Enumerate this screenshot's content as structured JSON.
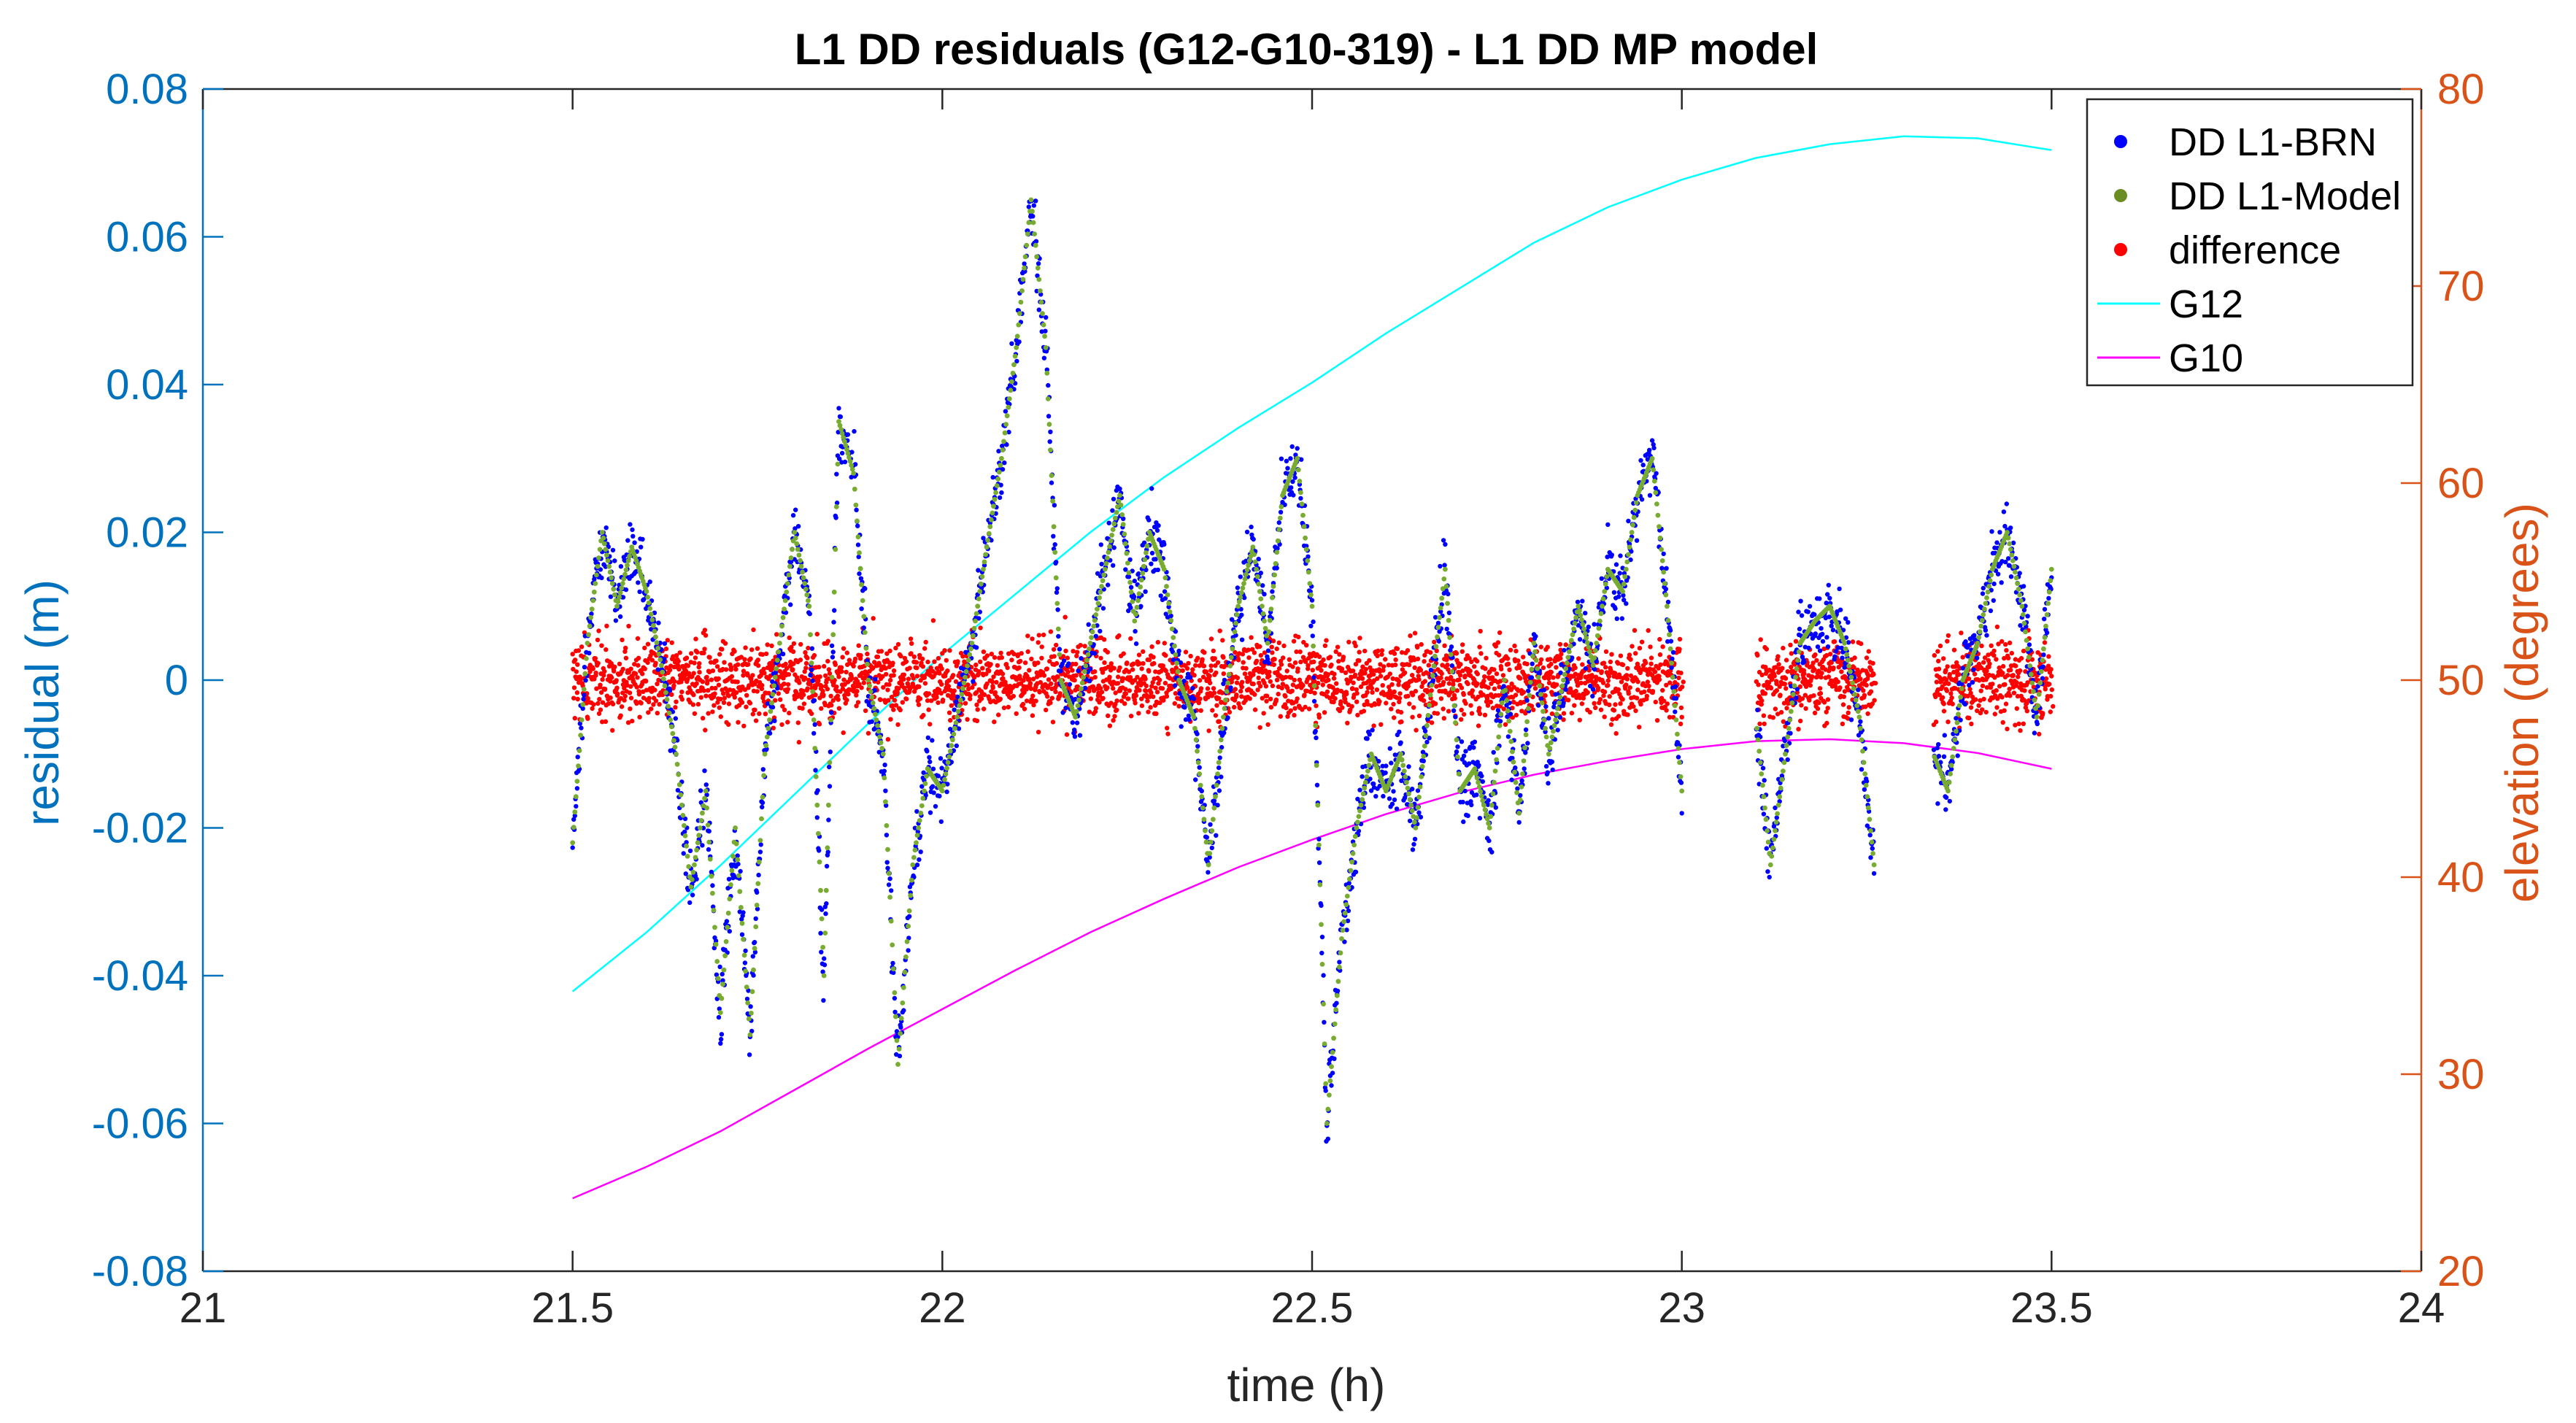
{
  "chart_data": {
    "type": "scatter",
    "title": "L1 DD residuals (G12-G10-319) - L1 DD MP model",
    "xlabel": "time (h)",
    "ylabel_left": "residual (m)",
    "ylabel_right": "elevation (degrees)",
    "xlim": [
      21,
      24
    ],
    "ylim_left": [
      -0.08,
      0.08
    ],
    "ylim_right": [
      20,
      80
    ],
    "x_ticks": [
      "21",
      "21.5",
      "22",
      "22.5",
      "23",
      "23.5",
      "24"
    ],
    "x_tick_values": [
      21,
      21.5,
      22,
      22.5,
      23,
      23.5,
      24
    ],
    "y_left_ticks": [
      "0.08",
      "0.06",
      "0.04",
      "0.02",
      "0",
      "-0.02",
      "-0.04",
      "-0.06",
      "-0.08"
    ],
    "y_left_tick_values": [
      0.08,
      0.06,
      0.04,
      0.02,
      0,
      -0.02,
      -0.04,
      -0.06,
      -0.08
    ],
    "y_right_ticks": [
      "80",
      "70",
      "60",
      "50",
      "40",
      "30",
      "20"
    ],
    "y_right_tick_values": [
      80,
      70,
      60,
      50,
      40,
      30,
      20
    ],
    "grid": false,
    "legend_position": "top-right",
    "colors": {
      "left_axis": "#0072BD",
      "right_axis": "#D95319",
      "blue_series": "#0000FF",
      "model_series": "#77AC30",
      "difference_series": "#FF0000",
      "g12": "#00FFFF",
      "g10": "#FF00FF"
    },
    "legend": [
      {
        "label": "DD L1-BRN",
        "kind": "dot",
        "color": "#0000FF"
      },
      {
        "label": "DD L1-Model",
        "kind": "dot",
        "color": "#6B8E23"
      },
      {
        "label": "difference",
        "kind": "dot",
        "color": "#FF0000"
      },
      {
        "label": "G12",
        "kind": "line",
        "color": "#00FFFF"
      },
      {
        "label": "G10",
        "kind": "line",
        "color": "#FF00FF"
      }
    ],
    "series": [
      {
        "name": "DD L1-Model",
        "axis": "left",
        "x": [
          21.5,
          21.52,
          21.54,
          21.56,
          21.58,
          21.6,
          21.62,
          21.64,
          21.66,
          21.68,
          21.7,
          21.72,
          21.74,
          21.76,
          21.78,
          21.8,
          21.82,
          21.84,
          21.86,
          21.88,
          21.9,
          21.92,
          21.94,
          21.96,
          21.98,
          22.0,
          22.02,
          22.04,
          22.06,
          22.08,
          22.1,
          22.12,
          22.14,
          22.16,
          22.18,
          22.2,
          22.22,
          22.24,
          22.26,
          22.28,
          22.3,
          22.32,
          22.34,
          22.36,
          22.38,
          22.4,
          22.42,
          22.44,
          22.46,
          22.48,
          22.5,
          22.52,
          22.54,
          22.56,
          22.58,
          22.6,
          22.62,
          22.64,
          22.66,
          22.68,
          22.7,
          22.72,
          22.74,
          22.76,
          22.78,
          22.8,
          22.82,
          22.84,
          22.86,
          22.88,
          22.9,
          22.92,
          22.94,
          22.96,
          22.98,
          23.0,
          23.02,
          23.04,
          23.06,
          23.08,
          23.1,
          23.12,
          23.14,
          23.16,
          23.18,
          23.2,
          23.22,
          23.24,
          23.26,
          23.28,
          23.3,
          23.32,
          23.34,
          23.36,
          23.38,
          23.4,
          23.42,
          23.44,
          23.46,
          23.48,
          23.5
        ],
        "y": [
          -0.022,
          0.005,
          0.02,
          0.01,
          0.018,
          0.012,
          0.002,
          -0.01,
          -0.028,
          -0.015,
          -0.045,
          -0.02,
          -0.048,
          -0.01,
          0.005,
          0.02,
          0.01,
          -0.04,
          0.035,
          0.028,
          0.0,
          -0.01,
          -0.052,
          -0.025,
          -0.012,
          -0.015,
          -0.005,
          0.005,
          0.018,
          0.03,
          0.045,
          0.065,
          0.045,
          0.0,
          -0.005,
          0.005,
          0.015,
          0.025,
          0.008,
          0.02,
          0.015,
          0.0,
          -0.005,
          -0.025,
          -0.005,
          0.01,
          0.018,
          0.005,
          0.025,
          0.03,
          0.01,
          -0.06,
          -0.035,
          -0.02,
          -0.01,
          -0.015,
          -0.01,
          -0.02,
          -0.002,
          0.015,
          -0.015,
          -0.012,
          -0.02,
          0.0,
          -0.018,
          0.005,
          -0.01,
          0.0,
          0.01,
          0.002,
          0.015,
          0.012,
          0.025,
          0.03,
          0.01,
          -0.015,
          null,
          null,
          null,
          null,
          -0.005,
          -0.025,
          -0.01,
          0.005,
          0.008,
          0.01,
          0.005,
          -0.005,
          -0.025,
          null,
          null,
          null,
          -0.01,
          -0.015,
          0.0,
          0.005,
          0.015,
          0.02,
          0.01,
          -0.005,
          0.015
        ]
      },
      {
        "name": "G12",
        "axis": "right",
        "x": [
          21.5,
          21.6,
          21.7,
          21.8,
          21.9,
          22.0,
          22.1,
          22.2,
          22.3,
          22.4,
          22.5,
          22.6,
          22.7,
          22.8,
          22.9,
          23.0,
          23.1,
          23.2,
          23.3,
          23.4,
          23.5
        ],
        "y": [
          34.2,
          37.2,
          40.6,
          44.2,
          47.8,
          51.3,
          54.4,
          57.5,
          60.3,
          62.8,
          65.1,
          67.6,
          69.9,
          72.2,
          74.0,
          75.4,
          76.5,
          77.2,
          77.6,
          77.5,
          76.9
        ]
      },
      {
        "name": "G10",
        "axis": "right",
        "x": [
          21.5,
          21.6,
          21.7,
          21.8,
          21.9,
          22.0,
          22.1,
          22.2,
          22.3,
          22.4,
          22.5,
          22.6,
          22.7,
          22.8,
          22.9,
          23.0,
          23.1,
          23.2,
          23.3,
          23.4,
          23.5
        ],
        "y": [
          23.7,
          25.3,
          27.1,
          29.2,
          31.3,
          33.3,
          35.3,
          37.2,
          38.9,
          40.5,
          41.9,
          43.2,
          44.3,
          45.2,
          45.9,
          46.5,
          46.9,
          47.0,
          46.8,
          46.3,
          45.5
        ]
      }
    ],
    "scatter_series": [
      {
        "name": "DD L1-BRN",
        "axis": "left",
        "note": "noisy points scattered around the DD L1-Model curve"
      },
      {
        "name": "difference",
        "axis": "left",
        "note": "scatter about 0 within roughly ±0.012 m"
      }
    ],
    "data_gaps": [
      [
        23.0,
        23.08
      ],
      [
        23.26,
        23.3
      ]
    ]
  }
}
